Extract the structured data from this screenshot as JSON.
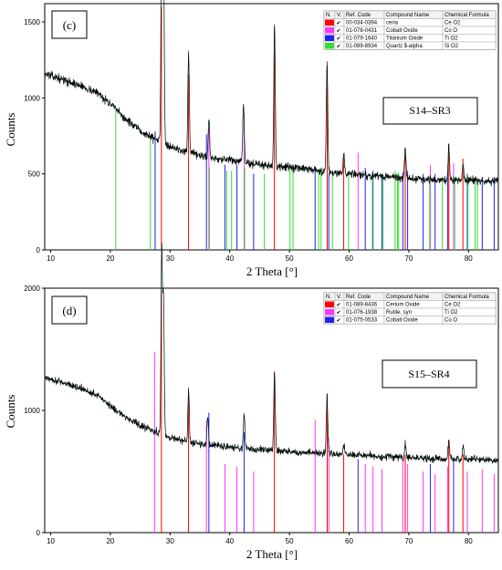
{
  "figure": {
    "colors": {
      "red": "#ff0000",
      "magenta": "#ff33ff",
      "blue": "#2222ee",
      "green": "#33dd33",
      "trace": "#000000",
      "trace_shadow": "#2a9d6a"
    },
    "legend_headers": [
      "N.",
      "V.",
      "Ref. Code",
      "Compound Name",
      "Chemical Formula"
    ]
  },
  "chart_data": [
    {
      "type": "line",
      "panel_label": "(c)",
      "sample_label": "S14–SR3",
      "xlabel": "2 Theta [°]",
      "ylabel": "Counts",
      "xlim": [
        9,
        85
      ],
      "ylim": [
        0,
        1620
      ],
      "xticks": [
        10,
        20,
        30,
        40,
        50,
        60,
        70,
        80
      ],
      "yticks": [
        0,
        500,
        1000,
        1500
      ],
      "background": [
        [
          9,
          1160
        ],
        [
          12,
          1120
        ],
        [
          15,
          1080
        ],
        [
          18,
          1030
        ],
        [
          20,
          960
        ],
        [
          22,
          880
        ],
        [
          25,
          780
        ],
        [
          28,
          720
        ],
        [
          30,
          680
        ],
        [
          33,
          640
        ],
        [
          36,
          610
        ],
        [
          40,
          590
        ],
        [
          45,
          560
        ],
        [
          50,
          545
        ],
        [
          55,
          520
        ],
        [
          60,
          500
        ],
        [
          65,
          485
        ],
        [
          70,
          470
        ],
        [
          75,
          460
        ],
        [
          80,
          455
        ],
        [
          85,
          450
        ]
      ],
      "peaks": [
        [
          28.6,
          1540
        ],
        [
          28.9,
          1280
        ],
        [
          33.1,
          650
        ],
        [
          36.5,
          260
        ],
        [
          42.3,
          380
        ],
        [
          47.5,
          920
        ],
        [
          56.3,
          720
        ],
        [
          59.1,
          130
        ],
        [
          69.4,
          200
        ],
        [
          76.7,
          230
        ],
        [
          79.1,
          120
        ]
      ],
      "noise": 28,
      "legend": [
        {
          "color": "red",
          "checked": "✔",
          "ref_code": "00-034-0394",
          "compound": "ceria",
          "formula": "Ce O2"
        },
        {
          "color": "magenta",
          "checked": "✔",
          "ref_code": "01-078-0431",
          "compound": "Cobalt Oxide",
          "formula": "Co O"
        },
        {
          "color": "blue",
          "checked": "✔",
          "ref_code": "01-079-1640",
          "compound": "Titanium Oxide",
          "formula": "Ti O2"
        },
        {
          "color": "green",
          "checked": "✔",
          "ref_code": "01-089-8934",
          "compound": "Quartz $-alpha",
          "formula": "Si O2"
        }
      ],
      "reference_lines": [
        {
          "color": "red",
          "x": [
            28.55,
            33.08,
            47.48,
            56.33,
            59.09,
            69.4,
            76.7,
            79.07
          ],
          "y": [
            1600,
            1160,
            1460,
            1240,
            620,
            620,
            700,
            600
          ]
        },
        {
          "color": "magenta",
          "x": [
            36.5,
            42.4,
            61.5,
            73.6,
            77.5
          ],
          "y": [
            800,
            900,
            640,
            560,
            570
          ]
        },
        {
          "color": "blue",
          "x": [
            27.5,
            36.1,
            39.2,
            41.2,
            44.0,
            54.3,
            56.6,
            62.7,
            64.0,
            65.5,
            69.0,
            69.8,
            72.4,
            74.4,
            76.5,
            79.8,
            82.3,
            84.3
          ],
          "y": [
            780,
            760,
            560,
            560,
            500,
            520,
            500,
            540,
            520,
            480,
            510,
            520,
            500,
            500,
            520,
            500,
            480,
            480
          ]
        },
        {
          "color": "green",
          "x": [
            20.9,
            26.7,
            36.6,
            39.5,
            40.3,
            42.5,
            45.8,
            50.1,
            50.6,
            54.9,
            55.3,
            57.2,
            59.9,
            63.9,
            65.7,
            67.7,
            68.1,
            68.3,
            73.5,
            75.6,
            77.7,
            79.9,
            81.1,
            81.5
          ],
          "y": [
            920,
            720,
            540,
            520,
            520,
            540,
            500,
            540,
            530,
            520,
            500,
            500,
            520,
            510,
            500,
            520,
            500,
            510,
            480,
            480,
            480,
            480,
            470,
            470
          ]
        }
      ]
    },
    {
      "type": "line",
      "panel_label": "(d)",
      "sample_label": "S15–SR4",
      "xlabel": "2 Theta [°]",
      "ylabel": "Counts",
      "xlim": [
        9,
        85
      ],
      "ylim": [
        0,
        2000
      ],
      "xticks": [
        10,
        20,
        30,
        40,
        50,
        60,
        70,
        80
      ],
      "yticks": [
        0,
        1000,
        2000
      ],
      "background": [
        [
          9,
          1270
        ],
        [
          12,
          1230
        ],
        [
          15,
          1180
        ],
        [
          18,
          1120
        ],
        [
          20,
          1040
        ],
        [
          22,
          960
        ],
        [
          25,
          880
        ],
        [
          28,
          820
        ],
        [
          30,
          780
        ],
        [
          33,
          740
        ],
        [
          36,
          720
        ],
        [
          40,
          700
        ],
        [
          45,
          680
        ],
        [
          50,
          660
        ],
        [
          55,
          650
        ],
        [
          60,
          640
        ],
        [
          65,
          625
        ],
        [
          70,
          615
        ],
        [
          75,
          605
        ],
        [
          80,
          600
        ],
        [
          85,
          590
        ]
      ],
      "peaks": [
        [
          28.6,
          1500
        ],
        [
          28.9,
          1100
        ],
        [
          33.1,
          420
        ],
        [
          36.3,
          240
        ],
        [
          42.4,
          280
        ],
        [
          47.5,
          650
        ],
        [
          56.3,
          470
        ],
        [
          59.1,
          90
        ],
        [
          69.4,
          110
        ],
        [
          76.7,
          160
        ],
        [
          79.1,
          100
        ]
      ],
      "noise": 30,
      "legend": [
        {
          "color": "red",
          "checked": "✔",
          "ref_code": "01-089-8436",
          "compound": "Cerium Oxide",
          "formula": "Ce O2"
        },
        {
          "color": "magenta",
          "checked": "✔",
          "ref_code": "01-076-1938",
          "compound": "Rutile, syn",
          "formula": "Ti O2"
        },
        {
          "color": "blue",
          "checked": "✔",
          "ref_code": "01-075-0533",
          "compound": "Cobalt Oxide",
          "formula": "Co O"
        }
      ],
      "reference_lines": [
        {
          "color": "red",
          "x": [
            28.55,
            33.08,
            47.48,
            56.33,
            59.09,
            69.4,
            76.7,
            79.07
          ],
          "y": [
            1980,
            1140,
            1320,
            1140,
            640,
            640,
            760,
            640
          ]
        },
        {
          "color": "magenta",
          "x": [
            27.4,
            36.1,
            39.2,
            41.2,
            44.0,
            54.3,
            56.6,
            62.7,
            64.0,
            65.5,
            69.0,
            69.8,
            72.4,
            74.4,
            76.5,
            79.8,
            82.3,
            84.3
          ],
          "y": [
            1480,
            920,
            560,
            540,
            500,
            920,
            780,
            560,
            540,
            520,
            600,
            560,
            500,
            480,
            540,
            500,
            520,
            480
          ]
        },
        {
          "color": "blue",
          "x": [
            36.5,
            42.4,
            61.5,
            73.6,
            77.5
          ],
          "y": [
            980,
            820,
            600,
            560,
            600
          ]
        }
      ]
    }
  ]
}
